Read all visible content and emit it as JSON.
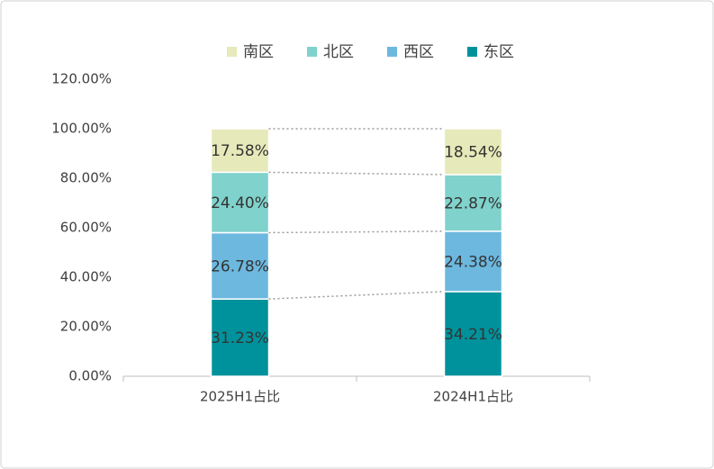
{
  "chart_data": {
    "type": "stacked-bar",
    "categories": [
      "2025H1占比",
      "2024H1占比"
    ],
    "series": [
      {
        "name": "东区",
        "color": "#00929c",
        "values": [
          31.23,
          34.21
        ],
        "value_labels": [
          "31.23%",
          "34.21%"
        ]
      },
      {
        "name": "西区",
        "color": "#6cb8df",
        "values": [
          26.78,
          24.38
        ],
        "value_labels": [
          "26.78%",
          "24.38%"
        ]
      },
      {
        "name": "北区",
        "color": "#80d2cc",
        "values": [
          24.4,
          22.87
        ],
        "value_labels": [
          "24.40%",
          "22.87%"
        ]
      },
      {
        "name": "南区",
        "color": "#e6e9b9",
        "values": [
          17.58,
          18.54
        ],
        "value_labels": [
          "17.58%",
          "18.54%"
        ]
      }
    ],
    "ylim": [
      0,
      120
    ],
    "yticks": [
      {
        "value": 0,
        "label": "0.00%"
      },
      {
        "value": 20,
        "label": "20.00%"
      },
      {
        "value": 40,
        "label": "40.00%"
      },
      {
        "value": 60,
        "label": "60.00%"
      },
      {
        "value": 80,
        "label": "80.00%"
      },
      {
        "value": 100,
        "label": "100.00%"
      },
      {
        "value": 120,
        "label": "120.00%"
      }
    ],
    "legend": "top",
    "grid": false
  }
}
